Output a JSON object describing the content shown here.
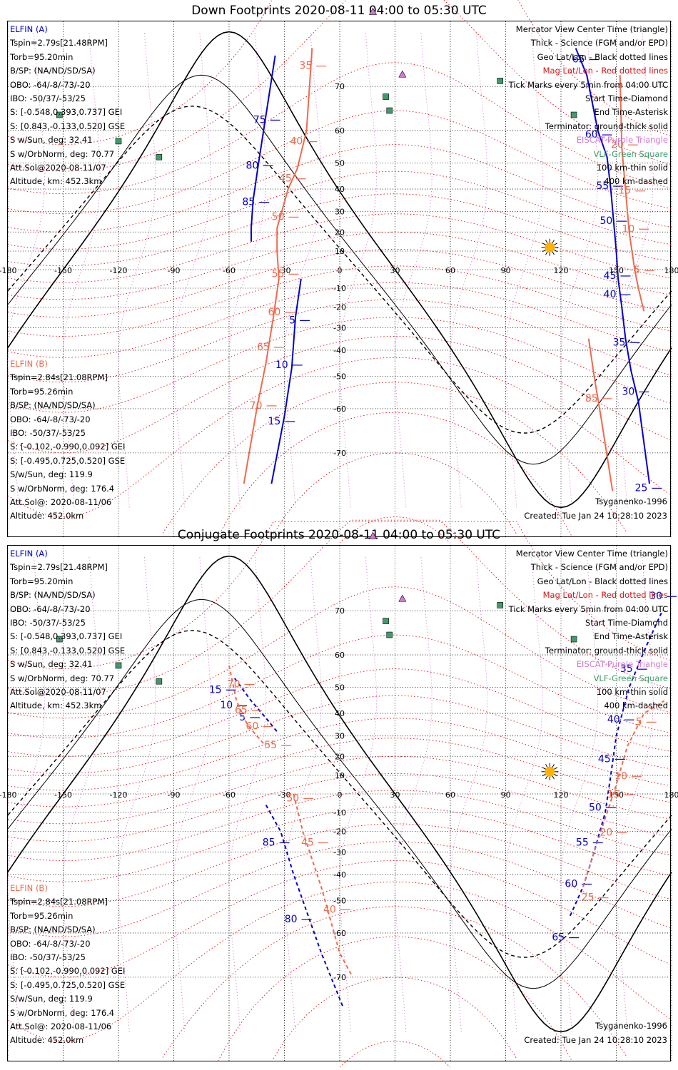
{
  "panels": [
    {
      "title": "Down Footprints 2020-08-11 04:00 to 05:30 UTC",
      "type": "down"
    },
    {
      "title": "Conjugate Footprints 2020-08-11 04:00 to 05:30 UTC",
      "type": "conjugate"
    }
  ],
  "info": {
    "elfin_a": {
      "label": "ELFIN (A)",
      "lines": [
        "Tspin=2.79s[21.48RPM]",
        "Torb=95.20min",
        "B/SP: (NA/ND/SD/SA)",
        "OBO: -64/-8/-73/-20",
        "IBO: -50/37/-53/25",
        "S: [-0.548,0.393,0.737] GEI",
        "S: [0.843,-0.133,0.520] GSE",
        "S w/Sun, deg: 32.41",
        "S w/OrbNorm, deg: 70.77",
        "Att.Sol@2020-08-11/07",
        "Altitude, km: 452.3km"
      ]
    },
    "elfin_b": {
      "label": "ELFIN (B)",
      "lines": [
        "Tspin=2.84s[21.08RPM]",
        "Torb=95.26min",
        "B/SP: (NA/ND/SD/SA)",
        "OBO: -64/-8/-73/-20",
        "IBO: -50/37/-53/25",
        "S: [-0.102,-0.990,0.092] GEI",
        "S: [-0.495,0.725,0.520] GSE",
        "S/w/Sun, deg: 119.9",
        "S w/OrbNorm, deg: 176.4",
        "Att.Sol@: 2020-08-11/06",
        "Altitude: 452.0km"
      ]
    },
    "legend": [
      {
        "text": "Mercator View Center Time (triangle)",
        "color": "black"
      },
      {
        "text": "Thick - Science (FGM and/or EPD)",
        "color": "black"
      },
      {
        "text": "Geo Lat/Lon - Black dotted lines",
        "color": "black"
      },
      {
        "text": "Mag Lat/Lon - Red dotted lines",
        "color": "red"
      },
      {
        "text": "Tick Marks every 5min from 04:00 UTC",
        "color": "black"
      },
      {
        "text": "Start Time-Diamond",
        "color": "black"
      },
      {
        "text": "End Time-Asterisk",
        "color": "black"
      },
      {
        "text": "Terminator: ground-thick solid",
        "color": "black"
      },
      {
        "text": "EISCAT-Purple Triangle",
        "color": "pink"
      },
      {
        "text": "VLF-Green Square",
        "color": "green"
      },
      {
        "text": "100 km-thin solid",
        "color": "black"
      },
      {
        "text": "400 km-dashed",
        "color": "black"
      }
    ],
    "model": "Tsyganenko-1996",
    "created": "Created: Tue Jan 24 10:28:10 2023"
  },
  "map": {
    "lon_ticks": [
      -180,
      -150,
      -120,
      -90,
      -60,
      -30,
      0,
      30,
      60,
      90,
      120,
      150,
      180
    ],
    "lon_labels": [
      "-180",
      "-150",
      "-120",
      "-90",
      "-60",
      "-30",
      "0",
      "30",
      "60",
      "90",
      "120",
      "150",
      "180"
    ],
    "lat_ticks": [
      70,
      60,
      50,
      40,
      30,
      20,
      10,
      0,
      -10,
      -20,
      -30,
      -40,
      -50,
      -60,
      -70
    ],
    "lat_labels": [
      "70",
      "60",
      "50",
      "40",
      "30",
      "20",
      "10",
      "0",
      "-10",
      "-20",
      "-30",
      "-40",
      "-50",
      "-60",
      "-70"
    ],
    "colors": {
      "elfin_a": "#0000cc",
      "elfin_b": "#ef6a4c",
      "geo_grid": "#000000",
      "mag_grid": "#e01010",
      "eiscat": "#d27ad2",
      "vlf": "#3f9c6a",
      "sun": "#ffb000"
    }
  },
  "chart_data": [
    {
      "type": "line",
      "title": "Down Footprints 2020-08-11 04:00 to 05:30 UTC",
      "xlim": [
        -180,
        180
      ],
      "series": [
        {
          "name": "ELFIN (A)",
          "points": [
            [
              -35,
              75
            ],
            [
              -44,
              50
            ],
            [
              -47,
              35
            ],
            [
              -48,
              22
            ],
            [
              -48,
              15
            ]
          ],
          "tick_labels": [
            {
              "text": "75",
              "at": [
                -40,
                62
              ]
            },
            {
              "text": "80",
              "at": [
                -44,
                48
              ]
            },
            {
              "text": "85",
              "at": [
                -46,
                33
              ]
            }
          ]
        },
        {
          "name": "ELFIN (A)",
          "points": [
            [
              -21,
              -5
            ],
            [
              -24,
              -25
            ],
            [
              -26,
              -47
            ],
            [
              -30,
              -62
            ],
            [
              -37,
              -75
            ]
          ],
          "tick_labels": [
            {
              "text": "5",
              "at": [
                -24,
                -28
              ]
            },
            {
              "text": "10",
              "at": [
                -28,
                -47
              ]
            },
            {
              "text": "15",
              "at": [
                -32,
                -64
              ]
            }
          ]
        },
        {
          "name": "ELFIN (A)",
          "points": [
            [
              128,
              76
            ],
            [
              134,
              72
            ],
            [
              140,
              60
            ],
            [
              145,
              52
            ],
            [
              147,
              40
            ],
            [
              150,
              10
            ],
            [
              151,
              -5
            ],
            [
              153,
              -20
            ],
            [
              155,
              -35
            ],
            [
              158,
              -48
            ],
            [
              162,
              -58
            ],
            [
              168,
              -75
            ]
          ],
          "tick_labels": [
            {
              "text": "65",
              "at": [
                133,
                74
              ]
            },
            {
              "text": "60",
              "at": [
                140,
                58
              ]
            },
            {
              "text": "55",
              "at": [
                146,
                40
              ]
            },
            {
              "text": "50",
              "at": [
                148,
                24
              ]
            },
            {
              "text": "45",
              "at": [
                150,
                -5
              ]
            },
            {
              "text": "40",
              "at": [
                150,
                -15
              ]
            },
            {
              "text": "35",
              "at": [
                155,
                -38
              ]
            },
            {
              "text": "30",
              "at": [
                160,
                -56
              ]
            },
            {
              "text": "25",
              "at": [
                167,
                -76
              ]
            }
          ]
        },
        {
          "name": "ELFIN (B)",
          "points": [
            [
              -15,
              76
            ],
            [
              -18,
              60
            ],
            [
              -23,
              48
            ],
            [
              -28,
              40
            ],
            [
              -34,
              22
            ],
            [
              -34,
              10
            ],
            [
              -33,
              -5
            ],
            [
              -36,
              -25
            ],
            [
              -40,
              -45
            ],
            [
              -45,
              -60
            ],
            [
              -52,
              -75
            ]
          ],
          "tick_labels": [
            {
              "text": "35",
              "at": [
                -15,
                73
              ]
            },
            {
              "text": "40",
              "at": [
                -20,
                56
              ]
            },
            {
              "text": "45",
              "at": [
                -26,
                43
              ]
            },
            {
              "text": "50",
              "at": [
                -30,
                26
              ]
            },
            {
              "text": "55",
              "at": [
                -30,
                -4
              ]
            },
            {
              "text": "60",
              "at": [
                -32,
                -24
              ]
            },
            {
              "text": "65",
              "at": [
                -38,
                -40
              ]
            },
            {
              "text": "70",
              "at": [
                -42,
                -60
              ]
            }
          ]
        },
        {
          "name": "ELFIN (B)",
          "points": [
            [
              152,
              72
            ],
            [
              153,
              55
            ],
            [
              155,
              40
            ],
            [
              157,
              20
            ],
            [
              160,
              0
            ],
            [
              162,
              -10
            ],
            [
              165,
              -22
            ]
          ],
          "tick_labels": [
            {
              "text": "20",
              "at": [
                154,
                55
              ]
            },
            {
              "text": "15",
              "at": [
                158,
                38
              ]
            },
            {
              "text": "10",
              "at": [
                160,
                20
              ]
            },
            {
              "text": "5",
              "at": [
                163,
                -2
              ]
            }
          ]
        },
        {
          "name": "ELFIN (B)",
          "points": [
            [
              135,
              -35
            ],
            [
              138,
              -50
            ],
            [
              142,
              -63
            ],
            [
              148,
              -76
            ]
          ],
          "tick_labels": [
            {
              "text": "85",
              "at": [
                140,
                -58
              ]
            }
          ]
        }
      ]
    },
    {
      "type": "line",
      "title": "Conjugate Footprints 2020-08-11 04:00 to 05:30 UTC",
      "xlim": [
        -180,
        180
      ],
      "series": [
        {
          "name": "ELFIN (A)",
          "points": [
            [
              -57,
              53
            ],
            [
              -48,
              45
            ],
            [
              -40,
              38
            ],
            [
              -34,
              32
            ]
          ],
          "tick_labels": [
            {
              "text": "15",
              "at": [
                -64,
                48
              ]
            },
            {
              "text": "10",
              "at": [
                -58,
                42
              ]
            },
            {
              "text": "5",
              "at": [
                -51,
                37
              ]
            }
          ]
        },
        {
          "name": "ELFIN (A)",
          "points": [
            [
              -40,
              -6
            ],
            [
              -32,
              -20
            ],
            [
              -25,
              -40
            ],
            [
              -10,
              -65
            ],
            [
              2,
              -75
            ]
          ],
          "tick_labels": [
            {
              "text": "85",
              "at": [
                -35,
                -27
              ]
            },
            {
              "text": "80",
              "at": [
                -23,
                -57
              ]
            }
          ]
        },
        {
          "name": "ELFIN (A)",
          "points": [
            [
              125,
              -55
            ],
            [
              132,
              -45
            ],
            [
              138,
              -30
            ],
            [
              144,
              -10
            ],
            [
              147,
              10
            ],
            [
              150,
              30
            ],
            [
              157,
              50
            ],
            [
              166,
              62
            ],
            [
              175,
              70
            ]
          ],
          "tick_labels": [
            {
              "text": "65",
              "at": [
                122,
                -62
              ]
            },
            {
              "text": "60",
              "at": [
                129,
                -45
              ]
            },
            {
              "text": "55",
              "at": [
                135,
                -27
              ]
            },
            {
              "text": "50",
              "at": [
                142,
                -9
              ]
            },
            {
              "text": "45",
              "at": [
                147,
                17
              ]
            },
            {
              "text": "40",
              "at": [
                152,
                36
              ]
            },
            {
              "text": "35",
              "at": [
                159,
                55
              ]
            },
            {
              "text": "30",
              "at": [
                175,
                72
              ]
            }
          ]
        },
        {
          "name": "ELFIN (B)",
          "points": [
            [
              -60,
              57
            ],
            [
              -56,
              45
            ],
            [
              -50,
              35
            ],
            [
              -40,
              25
            ]
          ],
          "tick_labels": [
            {
              "text": "70",
              "at": [
                -54,
                50
              ]
            },
            {
              "text": "65",
              "at": [
                -50,
                40
              ]
            },
            {
              "text": "60",
              "at": [
                -44,
                33
              ]
            },
            {
              "text": "55",
              "at": [
                -34,
                24
              ]
            }
          ]
        },
        {
          "name": "ELFIN (B)",
          "points": [
            [
              -25,
              0
            ],
            [
              -20,
              -20
            ],
            [
              -10,
              -45
            ],
            [
              0,
              -65
            ],
            [
              7,
              -70
            ]
          ],
          "tick_labels": [
            {
              "text": "50",
              "at": [
                -22,
                -4
              ]
            },
            {
              "text": "45",
              "at": [
                -14,
                -27
              ]
            },
            {
              "text": "40",
              "at": [
                -2,
                -54
              ]
            }
          ]
        },
        {
          "name": "ELFIN (B)",
          "points": [
            [
              132,
              -45
            ],
            [
              138,
              -30
            ],
            [
              145,
              -10
            ],
            [
              150,
              5
            ],
            [
              156,
              25
            ],
            [
              165,
              40
            ],
            [
              176,
              45
            ]
          ],
          "tick_labels": [
            {
              "text": "25",
              "at": [
                138,
                -50
              ]
            },
            {
              "text": "20",
              "at": [
                148,
                -22
              ]
            },
            {
              "text": "15",
              "at": [
                152,
                -2
              ]
            },
            {
              "text": "10",
              "at": [
                156,
                8
              ]
            },
            {
              "text": "5",
              "at": [
                164,
                35
              ]
            }
          ]
        }
      ]
    }
  ]
}
